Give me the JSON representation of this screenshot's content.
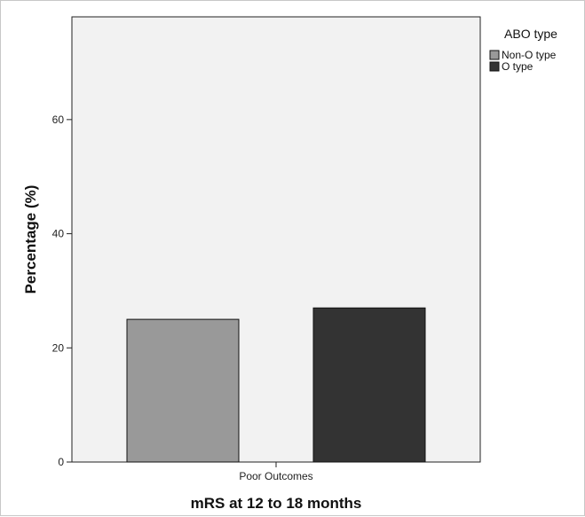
{
  "chart_data": {
    "type": "bar",
    "title": "",
    "xlabel": "mRS at 12 to 18 months",
    "ylabel": "Percentage (%)",
    "categories": [
      "Poor Outcomes"
    ],
    "series": [
      {
        "name": "Non-O type",
        "values": [
          25
        ],
        "color": "#999999"
      },
      {
        "name": "O type",
        "values": [
          27
        ],
        "color": "#333333"
      }
    ],
    "ylim": [
      0,
      78
    ],
    "yticks": [
      0,
      20,
      40,
      60
    ],
    "grid": false,
    "legend": {
      "title": "ABO type",
      "placement": "top-right"
    },
    "plot_background": "#f2f2f2"
  }
}
